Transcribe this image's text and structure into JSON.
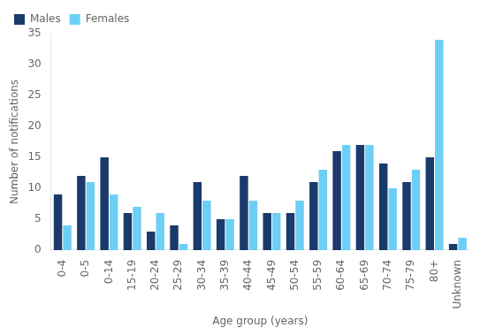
{
  "chart_data": {
    "type": "bar",
    "categories": [
      "0-4",
      "0-5",
      "0-14",
      "15-19",
      "20-24",
      "25-29",
      "30-34",
      "35-39",
      "40-44",
      "45-49",
      "50-54",
      "55-59",
      "60-64",
      "65-69",
      "70-74",
      "75-79",
      "80+",
      "Unknown"
    ],
    "series": [
      {
        "name": "Males",
        "color": "#1a3a6b",
        "values": [
          9,
          12,
          15,
          6,
          3,
          4,
          11,
          5,
          12,
          6,
          6,
          11,
          16,
          17,
          14,
          11,
          15,
          1
        ]
      },
      {
        "name": "Females",
        "color": "#6dcff6",
        "values": [
          4,
          11,
          9,
          7,
          6,
          1,
          8,
          5,
          8,
          6,
          8,
          13,
          17,
          17,
          10,
          13,
          34,
          2
        ]
      }
    ],
    "xlabel": "Age group (years)",
    "ylabel": "Number of notifications",
    "ylim": [
      0,
      35
    ],
    "yticks": [
      0,
      5,
      10,
      15,
      20,
      25,
      30,
      35
    ],
    "grid": false,
    "legend": "upper left"
  }
}
